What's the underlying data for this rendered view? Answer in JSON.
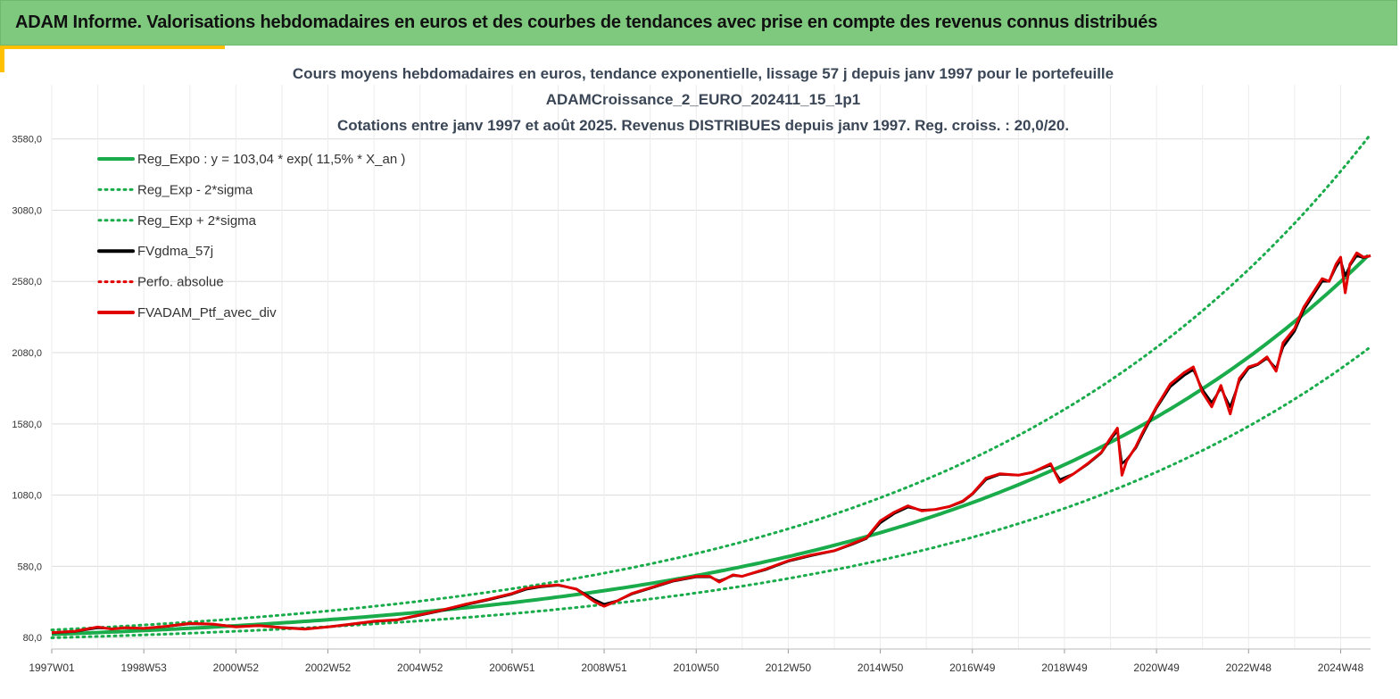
{
  "header": {
    "banner_title": "ADAM Informe. Valorisations hebdomadaires en euros et des courbes de tendances avec prise en compte des revenus connus distribués"
  },
  "colors": {
    "banner_bg": "#7fc97f",
    "accent": "#ffc000",
    "reg_expo": "#1aab4b",
    "reg_bands": "#1aab4b",
    "fvgdma": "#000000",
    "perfo": "#e00000",
    "portfolio": "#e00000"
  },
  "chart_data": {
    "type": "line",
    "title_lines": [
      "Cours moyens hebdomadaires  en euros, tendance exponentielle, lissage 57 j depuis janv 1997 pour le portefeuille",
      "ADAMCroissance_2_EURO_202411_15_1p1",
      "Cotations  entre janv 1997 et août  2025. Revenus DISTRIBUES depuis janv 1997. Reg. croiss. : 20,0/20."
    ],
    "x_ticks": [
      "1997W01",
      "1998W53",
      "2000W52",
      "2002W52",
      "2004W52",
      "2006W51",
      "2008W51",
      "2010W50",
      "2012W50",
      "2014W50",
      "2016W49",
      "2018W49",
      "2020W49",
      "2022W48",
      "2024W48"
    ],
    "x_tick_years": [
      1997,
      1999,
      2001,
      2003,
      2005,
      2007,
      2009,
      2011,
      2013,
      2015,
      2017,
      2019,
      2021,
      2023,
      2025
    ],
    "y_ticks": [
      "80,0",
      "580,0",
      "1080,0",
      "1580,0",
      "2080,0",
      "2580,0",
      "3080,0",
      "3580,0"
    ],
    "y_tick_values": [
      80,
      580,
      1080,
      1580,
      2080,
      2580,
      3080,
      3580
    ],
    "xlim": [
      1997.0,
      2025.65
    ],
    "ylim": [
      0,
      3960
    ],
    "grid": true,
    "legend_position": "top-left",
    "legend": [
      {
        "key": "reg_expo",
        "label": "Reg_Expo : y = 103,04 * exp( 11,5% *  X_an )",
        "style": "solid-green"
      },
      {
        "key": "reg_minus",
        "label": "Reg_Exp - 2*sigma",
        "style": "dotted-green"
      },
      {
        "key": "reg_plus",
        "label": "Reg_Exp + 2*sigma",
        "style": "dotted-green"
      },
      {
        "key": "fvgdma",
        "label": "FVgdma_57j",
        "style": "solid-black"
      },
      {
        "key": "perfo",
        "label": "Perfo. absolue",
        "style": "dotted-red"
      },
      {
        "key": "portfolio",
        "label": "FVADAM_Ptf_avec_div",
        "style": "solid-red"
      }
    ],
    "regression": {
      "a": 103.04,
      "rate": 0.115,
      "lower_factor": 0.763,
      "upper_factor": 1.3
    },
    "series": [
      {
        "name": "FVADAM_Ptf_avec_div",
        "x": [
          1997.0,
          1997.5,
          1998.0,
          1998.3,
          1998.6,
          1999.0,
          1999.5,
          2000.0,
          2000.5,
          2001.0,
          2001.5,
          2002.0,
          2002.5,
          2003.0,
          2003.5,
          2004.0,
          2004.5,
          2005.0,
          2005.5,
          2006.0,
          2006.5,
          2007.0,
          2007.3,
          2007.6,
          2008.0,
          2008.4,
          2008.8,
          2009.0,
          2009.3,
          2009.6,
          2010.0,
          2010.5,
          2011.0,
          2011.3,
          2011.5,
          2011.8,
          2012.0,
          2012.5,
          2013.0,
          2013.5,
          2014.0,
          2014.4,
          2014.7,
          2015.0,
          2015.3,
          2015.6,
          2015.9,
          2016.2,
          2016.5,
          2016.8,
          2017.0,
          2017.3,
          2017.6,
          2018.0,
          2018.3,
          2018.5,
          2018.7,
          2018.9,
          2019.2,
          2019.5,
          2019.8,
          2020.0,
          2020.15,
          2020.25,
          2020.35,
          2020.55,
          2020.7,
          2021.0,
          2021.3,
          2021.6,
          2021.8,
          2022.0,
          2022.2,
          2022.4,
          2022.6,
          2022.8,
          2023.0,
          2023.2,
          2023.4,
          2023.6,
          2023.75,
          2024.0,
          2024.2,
          2024.4,
          2024.6,
          2024.75,
          2024.9,
          2025.0,
          2025.1,
          2025.2,
          2025.35,
          2025.5,
          2025.65
        ],
        "y": [
          115,
          125,
          155,
          140,
          150,
          145,
          160,
          180,
          175,
          155,
          165,
          150,
          140,
          155,
          175,
          195,
          205,
          240,
          275,
          315,
          350,
          390,
          425,
          440,
          450,
          420,
          330,
          300,
          340,
          390,
          430,
          480,
          510,
          510,
          470,
          520,
          510,
          560,
          620,
          660,
          690,
          740,
          780,
          900,
          960,
          1005,
          970,
          980,
          1000,
          1040,
          1090,
          1200,
          1230,
          1220,
          1240,
          1270,
          1300,
          1170,
          1230,
          1300,
          1380,
          1480,
          1550,
          1220,
          1320,
          1420,
          1520,
          1700,
          1860,
          1940,
          1980,
          1800,
          1700,
          1850,
          1650,
          1900,
          1980,
          2000,
          2050,
          1950,
          2150,
          2250,
          2400,
          2500,
          2600,
          2580,
          2700,
          2750,
          2500,
          2700,
          2780,
          2750,
          2760
        ]
      },
      {
        "name": "FVgdma_57j",
        "x": [
          1997.0,
          1997.5,
          1998.0,
          1998.3,
          1998.6,
          1999.0,
          1999.5,
          2000.0,
          2000.5,
          2001.0,
          2001.5,
          2002.0,
          2002.5,
          2003.0,
          2003.5,
          2004.0,
          2004.5,
          2005.0,
          2005.5,
          2006.0,
          2006.5,
          2007.0,
          2007.3,
          2007.6,
          2008.0,
          2008.4,
          2008.8,
          2009.0,
          2009.3,
          2009.6,
          2010.0,
          2010.5,
          2011.0,
          2011.3,
          2011.5,
          2011.8,
          2012.0,
          2012.5,
          2013.0,
          2013.5,
          2014.0,
          2014.4,
          2014.7,
          2015.0,
          2015.3,
          2015.6,
          2015.9,
          2016.2,
          2016.5,
          2016.8,
          2017.0,
          2017.3,
          2017.6,
          2018.0,
          2018.3,
          2018.5,
          2018.7,
          2018.9,
          2019.2,
          2019.5,
          2019.8,
          2020.0,
          2020.15,
          2020.25,
          2020.35,
          2020.55,
          2020.7,
          2021.0,
          2021.3,
          2021.6,
          2021.8,
          2022.0,
          2022.2,
          2022.4,
          2022.6,
          2022.8,
          2023.0,
          2023.2,
          2023.4,
          2023.6,
          2023.75,
          2024.0,
          2024.2,
          2024.4,
          2024.6,
          2024.75,
          2024.9,
          2025.0,
          2025.1,
          2025.2,
          2025.35,
          2025.5,
          2025.65
        ],
        "y": [
          112,
          122,
          148,
          142,
          148,
          146,
          158,
          176,
          174,
          158,
          163,
          152,
          143,
          154,
          172,
          192,
          203,
          236,
          270,
          310,
          345,
          385,
          418,
          435,
          446,
          422,
          345,
          315,
          340,
          385,
          425,
          475,
          505,
          505,
          478,
          515,
          510,
          555,
          615,
          655,
          688,
          735,
          775,
          885,
          950,
          995,
          975,
          980,
          998,
          1035,
          1085,
          1190,
          1225,
          1220,
          1238,
          1265,
          1290,
          1190,
          1230,
          1295,
          1375,
          1470,
          1530,
          1300,
          1330,
          1410,
          1505,
          1690,
          1840,
          1920,
          1960,
          1820,
          1730,
          1830,
          1700,
          1880,
          1970,
          1995,
          2040,
          1970,
          2120,
          2230,
          2380,
          2480,
          2580,
          2580,
          2680,
          2730,
          2620,
          2690,
          2760,
          2745,
          2760
        ]
      }
    ]
  }
}
